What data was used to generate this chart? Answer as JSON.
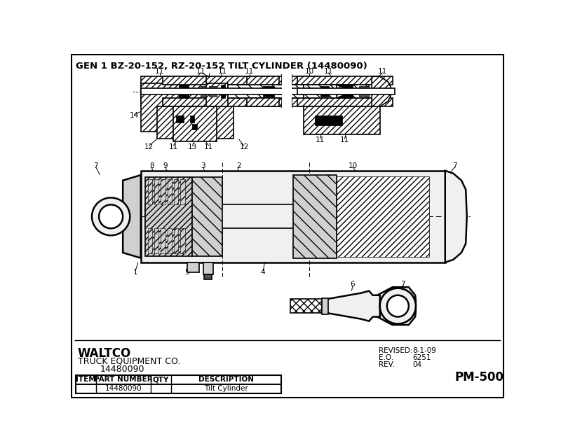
{
  "title": "GEN 1 BZ-20-152, RZ-20-152 TILT CYLINDER (14480090)",
  "title_fontsize": 9.5,
  "title_fontweight": "bold",
  "background_color": "#ffffff",
  "waltco_text": "WALTCO",
  "waltco_sub1": "TRUCK EQUIPMENT CO.",
  "waltco_sub2": "14480090",
  "revised_label": "REVISED:",
  "revised_val": "8-1-09",
  "eo_label": "E.O.",
  "eo_val": "6251",
  "rev_label": "REV.",
  "rev_val": "04",
  "pm_text": "PM-500",
  "table_headers": [
    "ITEM",
    "PART NUMBER",
    "QTY",
    "DESCRIPTION"
  ],
  "table_row": [
    "",
    "14480090",
    "",
    "Tilt Cylinder"
  ],
  "lw_thick": 1.8,
  "lw_med": 1.2,
  "lw_thin": 0.7,
  "hatch_color": "#555555",
  "line_color": "#000000",
  "white": "#ffffff",
  "lt_gray": "#f0f0f0",
  "gray": "#d0d0d0",
  "dk_gray": "#555555",
  "black": "#000000"
}
